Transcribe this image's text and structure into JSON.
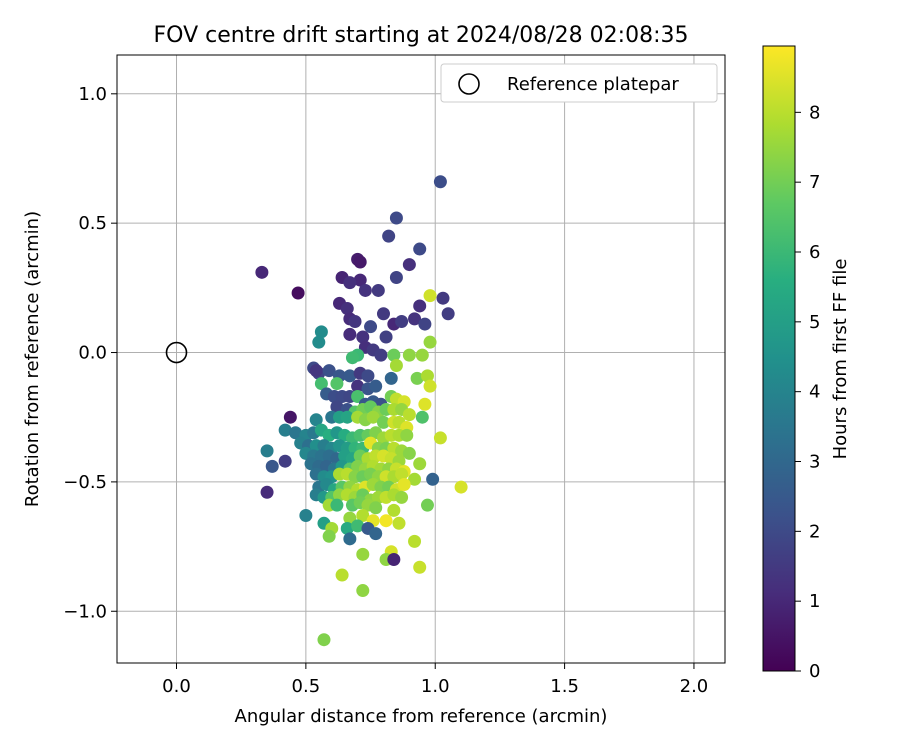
{
  "chart_data": {
    "type": "scatter",
    "title": "FOV centre drift starting at 2024/08/28 02:08:35",
    "xlabel": "Angular distance from reference (arcmin)",
    "ylabel": "Rotation from reference (arcmin)",
    "xlim": [
      -0.23,
      2.12
    ],
    "ylim": [
      -1.2,
      1.15
    ],
    "xticks": [
      0.0,
      0.5,
      1.0,
      1.5,
      2.0
    ],
    "xtick_labels": [
      "0.0",
      "0.5",
      "1.0",
      "1.5",
      "2.0"
    ],
    "yticks": [
      -1.0,
      -0.5,
      0.0,
      0.5,
      1.0
    ],
    "ytick_labels": [
      "−1.0",
      "−0.5",
      "0.0",
      "0.5",
      "1.0"
    ],
    "grid": true,
    "colormap": "viridis",
    "colorbar": {
      "label": "Hours from first FF file",
      "range": [
        0,
        8.95
      ],
      "ticks": [
        0,
        1,
        2,
        3,
        4,
        5,
        6,
        7,
        8
      ],
      "tick_labels": [
        "0",
        "1",
        "2",
        "3",
        "4",
        "5",
        "6",
        "7",
        "8"
      ]
    },
    "legend": {
      "position": "top-right",
      "entries": [
        "Reference platepar"
      ]
    },
    "reference_point": {
      "x": 0.0,
      "y": 0.0
    },
    "points": [
      [
        1.02,
        0.66,
        2.1
      ],
      [
        0.85,
        0.52,
        2.0
      ],
      [
        0.82,
        0.45,
        1.8
      ],
      [
        0.94,
        0.4,
        2.0
      ],
      [
        0.7,
        0.36,
        0.7
      ],
      [
        0.71,
        0.35,
        0.6
      ],
      [
        0.33,
        0.31,
        1.0
      ],
      [
        0.64,
        0.29,
        0.9
      ],
      [
        0.9,
        0.34,
        1.2
      ],
      [
        0.85,
        0.29,
        1.8
      ],
      [
        0.71,
        0.28,
        1.0
      ],
      [
        0.47,
        0.23,
        0.3
      ],
      [
        0.67,
        0.27,
        1.2
      ],
      [
        0.78,
        0.24,
        1.5
      ],
      [
        0.73,
        0.24,
        1.3
      ],
      [
        0.98,
        0.22,
        8.3
      ],
      [
        1.03,
        0.21,
        1.5
      ],
      [
        1.05,
        0.15,
        1.6
      ],
      [
        0.63,
        0.19,
        1.0
      ],
      [
        0.66,
        0.17,
        1.2
      ],
      [
        0.94,
        0.18,
        1.2
      ],
      [
        0.8,
        0.15,
        1.5
      ],
      [
        0.84,
        0.11,
        1.0
      ],
      [
        0.87,
        0.12,
        1.6
      ],
      [
        0.92,
        0.13,
        1.3
      ],
      [
        0.96,
        0.11,
        1.8
      ],
      [
        0.67,
        0.13,
        1.1
      ],
      [
        0.69,
        0.12,
        1.4
      ],
      [
        0.75,
        0.1,
        2.0
      ],
      [
        0.56,
        0.08,
        4.3
      ],
      [
        0.55,
        0.04,
        4.3
      ],
      [
        0.67,
        0.07,
        1.1
      ],
      [
        0.72,
        0.06,
        1.3
      ],
      [
        0.81,
        0.06,
        1.7
      ],
      [
        0.73,
        0.02,
        1.2
      ],
      [
        0.76,
        0.01,
        1.5
      ],
      [
        0.7,
        -0.01,
        6.0
      ],
      [
        0.68,
        -0.02,
        6.1
      ],
      [
        0.79,
        -0.01,
        1.6
      ],
      [
        0.84,
        -0.01,
        6.9
      ],
      [
        0.9,
        -0.01,
        7.4
      ],
      [
        0.95,
        -0.01,
        7.5
      ],
      [
        0.98,
        0.04,
        7.5
      ],
      [
        0.85,
        -0.05,
        7.7
      ],
      [
        0.53,
        -0.06,
        2.0
      ],
      [
        0.55,
        -0.08,
        1.8
      ],
      [
        0.54,
        -0.07,
        1.4
      ],
      [
        0.59,
        -0.07,
        2.2
      ],
      [
        0.63,
        -0.09,
        2.4
      ],
      [
        0.67,
        -0.09,
        2.5
      ],
      [
        0.71,
        -0.08,
        1.5
      ],
      [
        0.74,
        -0.09,
        2.0
      ],
      [
        0.83,
        -0.1,
        2.9
      ],
      [
        0.93,
        -0.1,
        7.1
      ],
      [
        0.97,
        -0.09,
        7.8
      ],
      [
        0.98,
        -0.13,
        8.3
      ],
      [
        0.56,
        -0.12,
        6.2
      ],
      [
        0.62,
        -0.12,
        6.5
      ],
      [
        0.7,
        -0.13,
        1.3
      ],
      [
        0.74,
        -0.14,
        2.3
      ],
      [
        0.77,
        -0.13,
        2.6
      ],
      [
        0.58,
        -0.16,
        2.6
      ],
      [
        0.61,
        -0.17,
        2.1
      ],
      [
        0.64,
        -0.17,
        2.0
      ],
      [
        0.67,
        -0.17,
        1.9
      ],
      [
        0.7,
        -0.17,
        6.3
      ],
      [
        0.73,
        -0.2,
        2.4
      ],
      [
        0.76,
        -0.19,
        2.5
      ],
      [
        0.79,
        -0.2,
        2.2
      ],
      [
        0.83,
        -0.17,
        7.0
      ],
      [
        0.85,
        -0.18,
        8.1
      ],
      [
        0.88,
        -0.19,
        8.4
      ],
      [
        0.96,
        -0.2,
        8.5
      ],
      [
        0.44,
        -0.25,
        0.5
      ],
      [
        0.62,
        -0.21,
        1.9
      ],
      [
        0.66,
        -0.22,
        2.2
      ],
      [
        0.69,
        -0.23,
        6.5
      ],
      [
        0.72,
        -0.22,
        7.0
      ],
      [
        0.75,
        -0.21,
        6.8
      ],
      [
        0.78,
        -0.23,
        7.3
      ],
      [
        0.81,
        -0.22,
        6.9
      ],
      [
        0.84,
        -0.22,
        7.8
      ],
      [
        0.87,
        -0.22,
        7.5
      ],
      [
        0.9,
        -0.24,
        8.0
      ],
      [
        0.95,
        -0.25,
        6.4
      ],
      [
        0.54,
        -0.26,
        4.0
      ],
      [
        0.6,
        -0.25,
        3.5
      ],
      [
        0.63,
        -0.25,
        5.0
      ],
      [
        0.66,
        -0.25,
        5.2
      ],
      [
        0.7,
        -0.25,
        7.7
      ],
      [
        0.73,
        -0.26,
        7.3
      ],
      [
        0.76,
        -0.25,
        7.6
      ],
      [
        0.8,
        -0.27,
        7.0
      ],
      [
        0.84,
        -0.27,
        8.3
      ],
      [
        0.86,
        -0.27,
        8.0
      ],
      [
        0.89,
        -0.29,
        8.5
      ],
      [
        0.42,
        -0.3,
        3.8
      ],
      [
        0.46,
        -0.31,
        3.5
      ],
      [
        0.5,
        -0.32,
        4.0
      ],
      [
        0.53,
        -0.31,
        3.6
      ],
      [
        0.56,
        -0.3,
        5.3
      ],
      [
        0.59,
        -0.32,
        5.6
      ],
      [
        0.62,
        -0.31,
        4.7
      ],
      [
        0.65,
        -0.32,
        5.5
      ],
      [
        0.68,
        -0.33,
        6.0
      ],
      [
        0.71,
        -0.32,
        6.3
      ],
      [
        0.74,
        -0.32,
        6.8
      ],
      [
        0.77,
        -0.31,
        7.2
      ],
      [
        0.8,
        -0.33,
        7.6
      ],
      [
        0.83,
        -0.32,
        8.0
      ],
      [
        0.86,
        -0.32,
        7.8
      ],
      [
        0.89,
        -0.32,
        7.4
      ],
      [
        1.02,
        -0.33,
        8.2
      ],
      [
        0.35,
        -0.38,
        3.8
      ],
      [
        0.48,
        -0.35,
        3.9
      ],
      [
        0.51,
        -0.36,
        3.3
      ],
      [
        0.54,
        -0.36,
        4.4
      ],
      [
        0.57,
        -0.36,
        3.8
      ],
      [
        0.6,
        -0.37,
        4.1
      ],
      [
        0.63,
        -0.36,
        4.6
      ],
      [
        0.66,
        -0.37,
        4.9
      ],
      [
        0.69,
        -0.37,
        5.8
      ],
      [
        0.72,
        -0.37,
        6.0
      ],
      [
        0.75,
        -0.35,
        8.6
      ],
      [
        0.78,
        -0.37,
        7.3
      ],
      [
        0.81,
        -0.37,
        7.1
      ],
      [
        0.84,
        -0.37,
        8.0
      ],
      [
        0.87,
        -0.38,
        7.6
      ],
      [
        0.9,
        -0.39,
        7.3
      ],
      [
        0.5,
        -0.39,
        4.1
      ],
      [
        0.53,
        -0.4,
        3.6
      ],
      [
        0.56,
        -0.4,
        3.4
      ],
      [
        0.59,
        -0.4,
        3.2
      ],
      [
        0.62,
        -0.41,
        3.0
      ],
      [
        0.65,
        -0.4,
        5.0
      ],
      [
        0.68,
        -0.41,
        5.2
      ],
      [
        0.71,
        -0.4,
        6.9
      ],
      [
        0.74,
        -0.41,
        7.8
      ],
      [
        0.77,
        -0.4,
        8.1
      ],
      [
        0.8,
        -0.4,
        8.4
      ],
      [
        0.83,
        -0.41,
        8.2
      ],
      [
        0.86,
        -0.42,
        7.6
      ],
      [
        0.37,
        -0.44,
        2.4
      ],
      [
        0.42,
        -0.42,
        1.6
      ],
      [
        0.52,
        -0.43,
        3.4
      ],
      [
        0.55,
        -0.44,
        3.1
      ],
      [
        0.58,
        -0.44,
        2.9
      ],
      [
        0.61,
        -0.45,
        3.5
      ],
      [
        0.64,
        -0.44,
        4.7
      ],
      [
        0.67,
        -0.45,
        6.6
      ],
      [
        0.7,
        -0.44,
        7.2
      ],
      [
        0.73,
        -0.45,
        7.5
      ],
      [
        0.76,
        -0.44,
        7.9
      ],
      [
        0.79,
        -0.45,
        7.7
      ],
      [
        0.82,
        -0.45,
        7.4
      ],
      [
        0.85,
        -0.45,
        8.2
      ],
      [
        0.88,
        -0.46,
        8.6
      ],
      [
        0.94,
        -0.43,
        7.6
      ],
      [
        0.54,
        -0.47,
        3.3
      ],
      [
        0.57,
        -0.48,
        4.3
      ],
      [
        0.6,
        -0.48,
        4.5
      ],
      [
        0.63,
        -0.47,
        7.8
      ],
      [
        0.66,
        -0.47,
        8.0
      ],
      [
        0.69,
        -0.48,
        7.3
      ],
      [
        0.72,
        -0.48,
        6.9
      ],
      [
        0.75,
        -0.47,
        7.1
      ],
      [
        0.78,
        -0.48,
        7.4
      ],
      [
        0.81,
        -0.48,
        8.3
      ],
      [
        0.84,
        -0.48,
        7.8
      ],
      [
        0.87,
        -0.47,
        8.1
      ],
      [
        0.92,
        -0.49,
        7.7
      ],
      [
        0.99,
        -0.49,
        2.8
      ],
      [
        0.35,
        -0.54,
        1.1
      ],
      [
        0.55,
        -0.52,
        3.5
      ],
      [
        0.58,
        -0.51,
        4.2
      ],
      [
        0.61,
        -0.53,
        5.3
      ],
      [
        0.64,
        -0.52,
        6.6
      ],
      [
        0.67,
        -0.52,
        7.4
      ],
      [
        0.7,
        -0.53,
        7.9
      ],
      [
        0.73,
        -0.52,
        8.5
      ],
      [
        0.76,
        -0.51,
        7.6
      ],
      [
        0.79,
        -0.52,
        7.2
      ],
      [
        0.82,
        -0.52,
        7.0
      ],
      [
        0.85,
        -0.53,
        8.3
      ],
      [
        0.88,
        -0.51,
        8.6
      ],
      [
        1.1,
        -0.52,
        8.4
      ],
      [
        0.54,
        -0.55,
        3.8
      ],
      [
        0.57,
        -0.56,
        4.8
      ],
      [
        0.6,
        -0.56,
        6.5
      ],
      [
        0.63,
        -0.55,
        7.4
      ],
      [
        0.66,
        -0.55,
        7.9
      ],
      [
        0.69,
        -0.56,
        7.6
      ],
      [
        0.72,
        -0.55,
        6.9
      ],
      [
        0.75,
        -0.57,
        7.4
      ],
      [
        0.78,
        -0.56,
        7.6
      ],
      [
        0.81,
        -0.56,
        8.1
      ],
      [
        0.84,
        -0.55,
        7.8
      ],
      [
        0.87,
        -0.56,
        7.5
      ],
      [
        0.59,
        -0.59,
        7.7
      ],
      [
        0.62,
        -0.59,
        6.0
      ],
      [
        0.68,
        -0.59,
        6.6
      ],
      [
        0.71,
        -0.58,
        7.0
      ],
      [
        0.74,
        -0.59,
        7.5
      ],
      [
        0.77,
        -0.6,
        7.2
      ],
      [
        0.84,
        -0.61,
        7.9
      ],
      [
        0.97,
        -0.59,
        7.0
      ],
      [
        0.5,
        -0.63,
        3.9
      ],
      [
        0.67,
        -0.64,
        7.5
      ],
      [
        0.72,
        -0.63,
        7.9
      ],
      [
        0.76,
        -0.65,
        8.6
      ],
      [
        0.81,
        -0.65,
        8.8
      ],
      [
        0.86,
        -0.66,
        8.1
      ],
      [
        0.57,
        -0.66,
        5.0
      ],
      [
        0.6,
        -0.68,
        7.7
      ],
      [
        0.66,
        -0.68,
        5.4
      ],
      [
        0.7,
        -0.67,
        6.1
      ],
      [
        0.74,
        -0.68,
        2.5
      ],
      [
        0.77,
        -0.7,
        2.9
      ],
      [
        0.59,
        -0.71,
        7.2
      ],
      [
        0.67,
        -0.72,
        3.1
      ],
      [
        0.92,
        -0.73,
        8.0
      ],
      [
        0.72,
        -0.78,
        7.5
      ],
      [
        0.83,
        -0.77,
        8.4
      ],
      [
        0.81,
        -0.8,
        7.4
      ],
      [
        0.84,
        -0.8,
        0.9
      ],
      [
        0.94,
        -0.83,
        8.2
      ],
      [
        0.64,
        -0.86,
        8.0
      ],
      [
        0.72,
        -0.92,
        7.4
      ],
      [
        0.57,
        -1.11,
        7.2
      ]
    ]
  }
}
